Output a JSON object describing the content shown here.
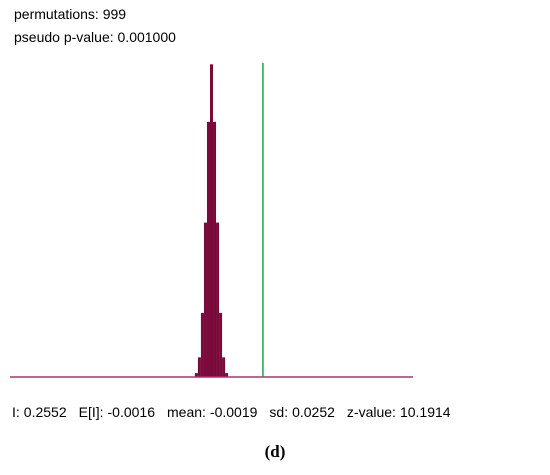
{
  "chart_data": {
    "type": "histogram",
    "header": [
      "permutations: 999",
      "pseudo p-value: 0.001000"
    ],
    "bins": [
      -0.0975,
      -0.0825,
      -0.0675,
      -0.0525,
      -0.0375,
      -0.0225,
      -0.0075,
      0.0075,
      0.0225,
      0.0375,
      0.0525,
      0.0675,
      0.0825,
      0.0975
    ],
    "counts": [
      0,
      3,
      15,
      49,
      118,
      195,
      239,
      195,
      118,
      49,
      15,
      3,
      0
    ],
    "color": "#7a0a3a",
    "baseline_color": "#b0306a",
    "observed_color": "#1ca34a",
    "xlim": [
      -1,
      1
    ],
    "ylim": [
      0,
      240
    ],
    "stats": [
      {
        "label": "I:",
        "value": 0.2552
      },
      {
        "label": "E[I]:",
        "value": -0.0016
      },
      {
        "label": "mean:",
        "value": -0.0019
      },
      {
        "label": "sd:",
        "value": 0.0252
      },
      {
        "label": "z-value:",
        "value": 10.1914
      }
    ],
    "caption": "(d)"
  }
}
